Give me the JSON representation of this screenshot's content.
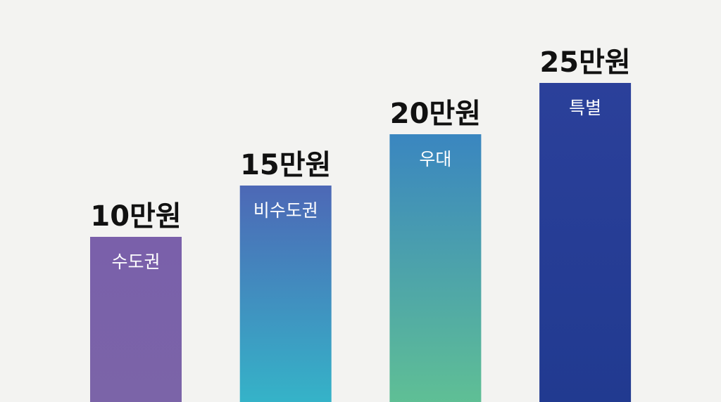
{
  "chart_data": {
    "type": "bar",
    "categories": [
      "수도권",
      "비수도권",
      "우대",
      "특별"
    ],
    "values": [
      10,
      15,
      20,
      25
    ],
    "value_labels": [
      "10만원",
      "15만원",
      "20만원",
      "25만원"
    ],
    "colors": [
      [
        "#7a60aa",
        "#7b64a8"
      ],
      [
        "#4d68b6",
        "#35b3c8"
      ],
      [
        "#3a86c0",
        "#5fbf95"
      ],
      [
        "#2b409a",
        "#213a90"
      ]
    ]
  }
}
